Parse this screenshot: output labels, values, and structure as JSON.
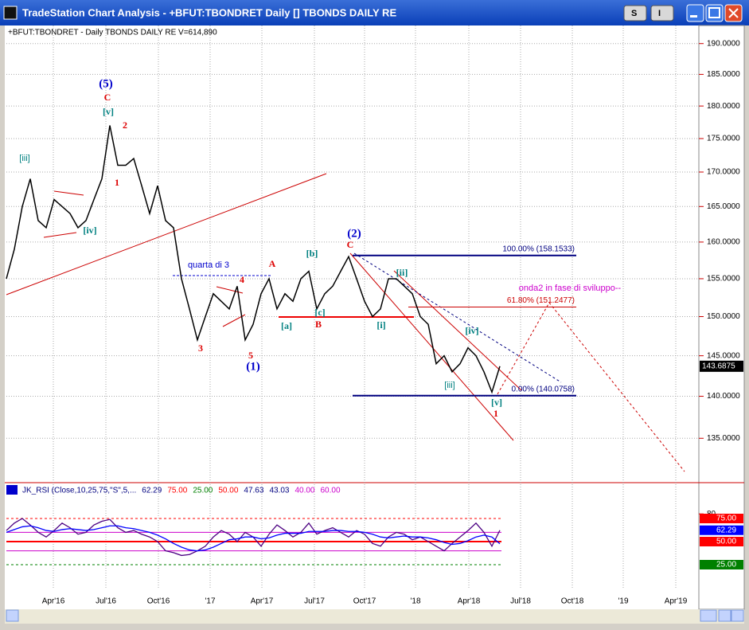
{
  "window": {
    "title": "TradeStation Chart Analysis - +BFUT:TBONDRET Daily [] TBONDS DAILY RE",
    "buttons": [
      "S",
      "I"
    ]
  },
  "chart_data": {
    "type": "line",
    "header": "+BFUT:TBONDRET - Daily  TBONDS DAILY RE  V=614,890",
    "log_scale": true,
    "grid": true,
    "color": "#000000",
    "ylim": [
      130,
      193
    ],
    "yticks": [
      {
        "value": 190,
        "label": "190.0000"
      },
      {
        "value": 185,
        "label": "185.0000"
      },
      {
        "value": 180,
        "label": "180.0000"
      },
      {
        "value": 175,
        "label": "175.0000"
      },
      {
        "value": 170,
        "label": "170.0000"
      },
      {
        "value": 165,
        "label": "165.0000"
      },
      {
        "value": 160,
        "label": "160.0000"
      },
      {
        "value": 155,
        "label": "155.0000"
      },
      {
        "value": 150,
        "label": "150.0000"
      },
      {
        "value": 145,
        "label": "145.0000"
      },
      {
        "value": 140,
        "label": "140.0000"
      },
      {
        "value": 135,
        "label": "135.0000"
      }
    ],
    "x_labels": [
      "Apr'16",
      "Jul'16",
      "Oct'16",
      "'17",
      "Apr'17",
      "Jul'17",
      "Oct'17",
      "'18",
      "Apr'18",
      "Jul'18",
      "Oct'18",
      "'19",
      "Apr'19"
    ],
    "values": [
      155,
      159,
      165,
      169,
      163,
      162,
      166,
      165,
      164,
      162,
      163,
      166,
      169,
      177,
      171,
      171,
      172,
      168,
      164,
      168,
      163,
      162,
      155,
      151,
      147,
      150,
      153,
      152,
      151,
      154,
      147,
      149,
      153,
      155,
      151,
      153,
      152,
      155,
      156,
      151,
      153,
      154,
      156,
      158,
      155,
      152,
      150,
      151,
      155,
      155,
      154,
      153,
      150,
      149,
      144,
      145,
      143,
      144,
      146,
      145,
      143,
      140.5,
      143.6875
    ],
    "fibonacci": [
      {
        "value": 158.1533,
        "label": "100.00% (158.1533)",
        "color": "#000080"
      },
      {
        "value": 151.2477,
        "label": "61.80% (151.2477)",
        "color": "#cc0000"
      },
      {
        "value": 140.0758,
        "label": "0.00% (140.0758)",
        "color": "#000080"
      }
    ],
    "annotations": [
      {
        "text": "(5)",
        "color": "#0000cc"
      },
      {
        "text": "C",
        "color": "#dd0000"
      },
      {
        "text": "[v]",
        "color": "#008080"
      },
      {
        "text": "2",
        "color": "#dd0000"
      },
      {
        "text": "1",
        "color": "#dd0000"
      },
      {
        "text": "[iii]",
        "color": "#008080"
      },
      {
        "text": "[iv]",
        "color": "#008080"
      },
      {
        "text": "quarta di 3",
        "color": "#0000cc"
      },
      {
        "text": "4",
        "color": "#dd0000"
      },
      {
        "text": "3",
        "color": "#dd0000"
      },
      {
        "text": "5",
        "color": "#dd0000"
      },
      {
        "text": "(1)",
        "color": "#0000cc"
      },
      {
        "text": "A",
        "color": "#dd0000"
      },
      {
        "text": "[b]",
        "color": "#008080"
      },
      {
        "text": "[a]",
        "color": "#008080"
      },
      {
        "text": "[c]",
        "color": "#008080"
      },
      {
        "text": "B",
        "color": "#dd0000"
      },
      {
        "text": "(2)",
        "color": "#0000cc"
      },
      {
        "text": "C",
        "color": "#dd0000"
      },
      {
        "text": "[i]",
        "color": "#008080"
      },
      {
        "text": "[ii]",
        "color": "#008080"
      },
      {
        "text": "[iii]",
        "color": "#008080"
      },
      {
        "text": "[iv]",
        "color": "#008080"
      },
      {
        "text": "[v]",
        "color": "#008080"
      },
      {
        "text": "1",
        "color": "#dd0000"
      },
      {
        "text": "onda2 in fase di sviluppo--",
        "color": "#cc00cc"
      }
    ]
  },
  "rsi": {
    "name": "JK_RSI (Close,10,25,75,\"S\",5,...",
    "ylim": [
      0,
      100
    ],
    "yticks": [
      80
    ],
    "levels": [
      {
        "value": 75,
        "label": "75.00",
        "color": "#ff0000"
      },
      {
        "value": 25,
        "label": "25.00",
        "color": "#008000"
      },
      {
        "value": 50,
        "label": "50.00",
        "color": "#ff0000"
      },
      {
        "value": 40,
        "label": "40.00",
        "color": "#cc00cc"
      },
      {
        "value": 60,
        "label": "60.00",
        "color": "#cc00cc"
      }
    ],
    "signal": 43.03,
    "values": [
      62,
      70,
      75,
      68,
      60,
      55,
      62,
      70,
      65,
      58,
      60,
      68,
      72,
      74,
      65,
      60,
      62,
      58,
      55,
      50,
      40,
      38,
      35,
      36,
      40,
      45,
      55,
      62,
      58,
      50,
      60,
      55,
      45,
      58,
      68,
      62,
      55,
      60,
      70,
      58,
      62,
      65,
      60,
      55,
      62,
      58,
      48,
      45,
      55,
      60,
      58,
      52,
      55,
      50,
      45,
      40,
      48,
      55,
      62,
      70,
      60,
      45,
      62.29
    ],
    "average": [
      60,
      63,
      66,
      67,
      65,
      62,
      61,
      63,
      64,
      63,
      62,
      63,
      65,
      67,
      67,
      65,
      64,
      62,
      60,
      57,
      53,
      48,
      44,
      41,
      40,
      41,
      44,
      48,
      52,
      53,
      55,
      55,
      53,
      54,
      57,
      59,
      59,
      59,
      61,
      61,
      61,
      62,
      62,
      61,
      61,
      60,
      58,
      55,
      54,
      55,
      56,
      55,
      55,
      54,
      52,
      49,
      47,
      48,
      51,
      55,
      57,
      55,
      47.63
    ],
    "color": "#4b0082",
    "average_color": "#0000ff"
  }
}
